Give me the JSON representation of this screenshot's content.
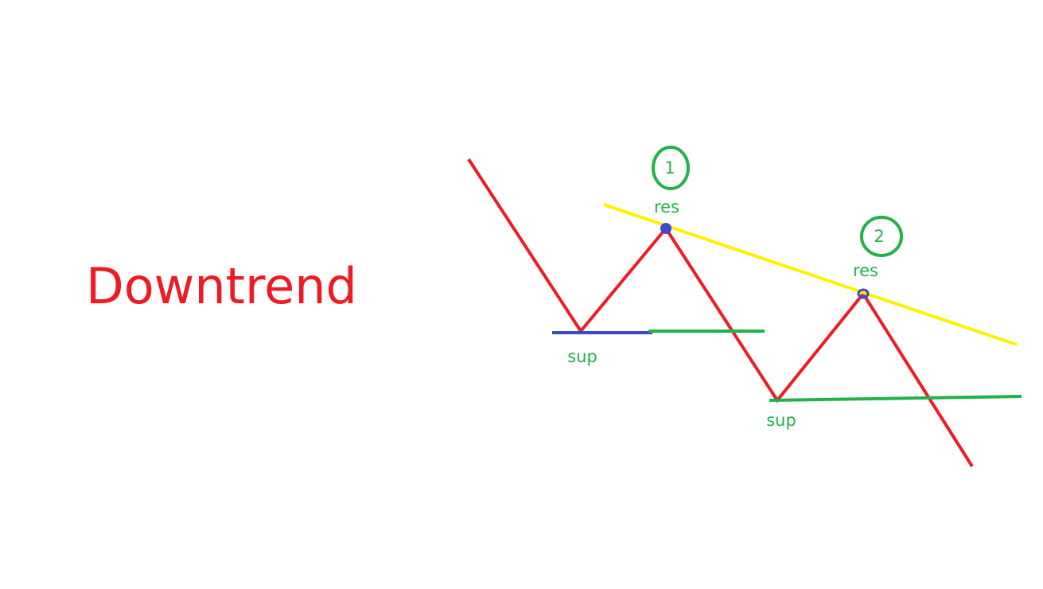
{
  "title": "Downtrend",
  "labels": {
    "sup_1": "sup",
    "sup_2": "sup",
    "res_1": "res",
    "res_2": "res",
    "marker_1": "1",
    "marker_2": "2"
  },
  "colors": {
    "title": "#ed1c24",
    "price_line": "#ed1c24",
    "trendline": "#fff200",
    "support_green": "#22b14c",
    "support_blue": "#3f48cc",
    "pivot_marker": "#3f48cc",
    "label_green": "#22b14c"
  },
  "icons": {
    "pivot_marker": "blue-dot-icon",
    "number_marker": "green-circle-icon"
  }
}
